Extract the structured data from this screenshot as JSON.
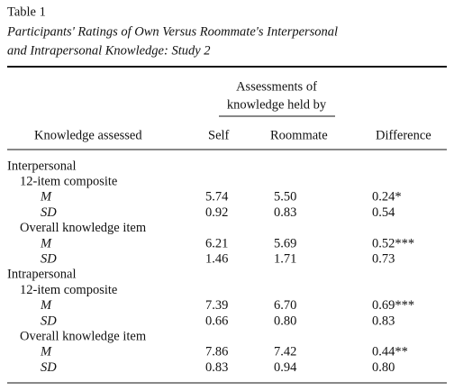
{
  "table_label": "Table 1",
  "title_lines": [
    "Participants' Ratings of Own Versus Roommate's Interpersonal",
    "and Intrapersonal Knowledge: Study 2"
  ],
  "table": {
    "spanner": [
      "Assessments of",
      "knowledge held by"
    ],
    "columns": [
      "Knowledge assessed",
      "Self",
      "Roommate",
      "Difference"
    ],
    "sections": [
      {
        "name": "Interpersonal",
        "measures": [
          {
            "name": "12-item composite",
            "rows": [
              [
                "M",
                "5.74",
                "5.50",
                "0.24*"
              ],
              [
                "SD",
                "0.92",
                "0.83",
                "0.54"
              ]
            ]
          },
          {
            "name": "Overall knowledge item",
            "rows": [
              [
                "M",
                "6.21",
                "5.69",
                "0.52***"
              ],
              [
                "SD",
                "1.46",
                "1.71",
                "0.73"
              ]
            ]
          }
        ]
      },
      {
        "name": "Intrapersonal",
        "measures": [
          {
            "name": "12-item composite",
            "rows": [
              [
                "M",
                "7.39",
                "6.70",
                "0.69***"
              ],
              [
                "SD",
                "0.66",
                "0.80",
                "0.83"
              ]
            ]
          },
          {
            "name": "Overall knowledge item",
            "rows": [
              [
                "M",
                "7.86",
                "7.42",
                "0.44**"
              ],
              [
                "SD",
                "0.83",
                "0.94",
                "0.80"
              ]
            ]
          }
        ]
      }
    ]
  }
}
